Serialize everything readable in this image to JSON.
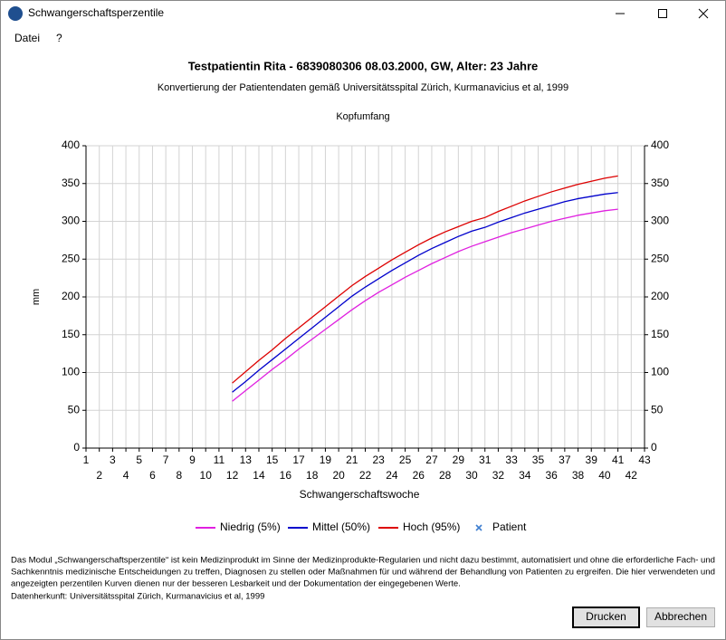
{
  "window": {
    "title": "Schwangerschaftsperzentile"
  },
  "menu": [
    "Datei",
    "?"
  ],
  "header": {
    "title": "Testpatientin Rita - 6839080306 08.03.2000, GW, Alter: 23 Jahre",
    "subtitle": "Konvertierung der Patientendaten gemäß Universitätsspital Zürich, Kurmanavicius et al, 1999"
  },
  "chart_data": {
    "type": "line",
    "title": "Kopfumfang",
    "x_label": "Schwangerschaftswoche",
    "y_label": "mm",
    "x": [
      12,
      13,
      14,
      15,
      16,
      17,
      18,
      19,
      20,
      21,
      22,
      23,
      24,
      25,
      26,
      27,
      28,
      29,
      30,
      31,
      32,
      33,
      34,
      35,
      36,
      37,
      38,
      39,
      40,
      41
    ],
    "series": [
      {
        "name": "Niedrig (5%)",
        "color": "#e020e0",
        "values": [
          62,
          76,
          90,
          104,
          117,
          131,
          144,
          157,
          170,
          183,
          195,
          206,
          216,
          226,
          235,
          244,
          252,
          260,
          267,
          273,
          279,
          285,
          290,
          295,
          300,
          304,
          308,
          311,
          314,
          316
        ]
      },
      {
        "name": "Mittel (50%)",
        "color": "#0000cc",
        "values": [
          74,
          88,
          103,
          117,
          131,
          145,
          159,
          173,
          187,
          201,
          213,
          224,
          235,
          245,
          255,
          264,
          272,
          280,
          287,
          292,
          299,
          305,
          311,
          316,
          321,
          326,
          330,
          333,
          336,
          338
        ]
      },
      {
        "name": "Hoch (95%)",
        "color": "#dd0000",
        "values": [
          86,
          101,
          116,
          130,
          145,
          159,
          173,
          187,
          201,
          215,
          227,
          238,
          249,
          259,
          269,
          278,
          286,
          293,
          300,
          305,
          313,
          320,
          327,
          333,
          339,
          344,
          349,
          353,
          357,
          360
        ]
      }
    ],
    "legend_extra": {
      "name": "Patient",
      "color": "#3f7fd0"
    },
    "xlim": [
      1,
      43
    ],
    "xticks": [
      1,
      2,
      3,
      4,
      5,
      6,
      7,
      8,
      9,
      10,
      11,
      12,
      13,
      14,
      15,
      16,
      17,
      18,
      19,
      20,
      21,
      22,
      23,
      24,
      25,
      26,
      27,
      28,
      29,
      30,
      31,
      32,
      33,
      34,
      35,
      36,
      37,
      38,
      39,
      40,
      41,
      42,
      43
    ],
    "ylim": [
      0,
      400
    ],
    "yticks": [
      0,
      50,
      100,
      150,
      200,
      250,
      300,
      350,
      400
    ],
    "grid": true
  },
  "disclaimer": [
    "Das Modul „Schwangerschaftsperzentile“ ist kein Medizinprodukt im Sinne der Medizinprodukte-Regularien und nicht dazu bestimmt, automatisiert und ohne die erforderliche Fach- und",
    "Sachkenntnis medizinische Entscheidungen zu treffen, Diagnosen zu stellen oder Maßnahmen für und während der Behandlung von Patienten zu ergreifen. Die hier verwendeten und",
    "angezeigten perzentilen Kurven dienen nur der besseren Lesbarkeit und der Dokumentation der eingegebenen Werte."
  ],
  "source": "Datenherkunft:  Universitätsspital Zürich, Kurmanavicius et al, 1999",
  "buttons": [
    "Drucken",
    "Abbrechen"
  ]
}
